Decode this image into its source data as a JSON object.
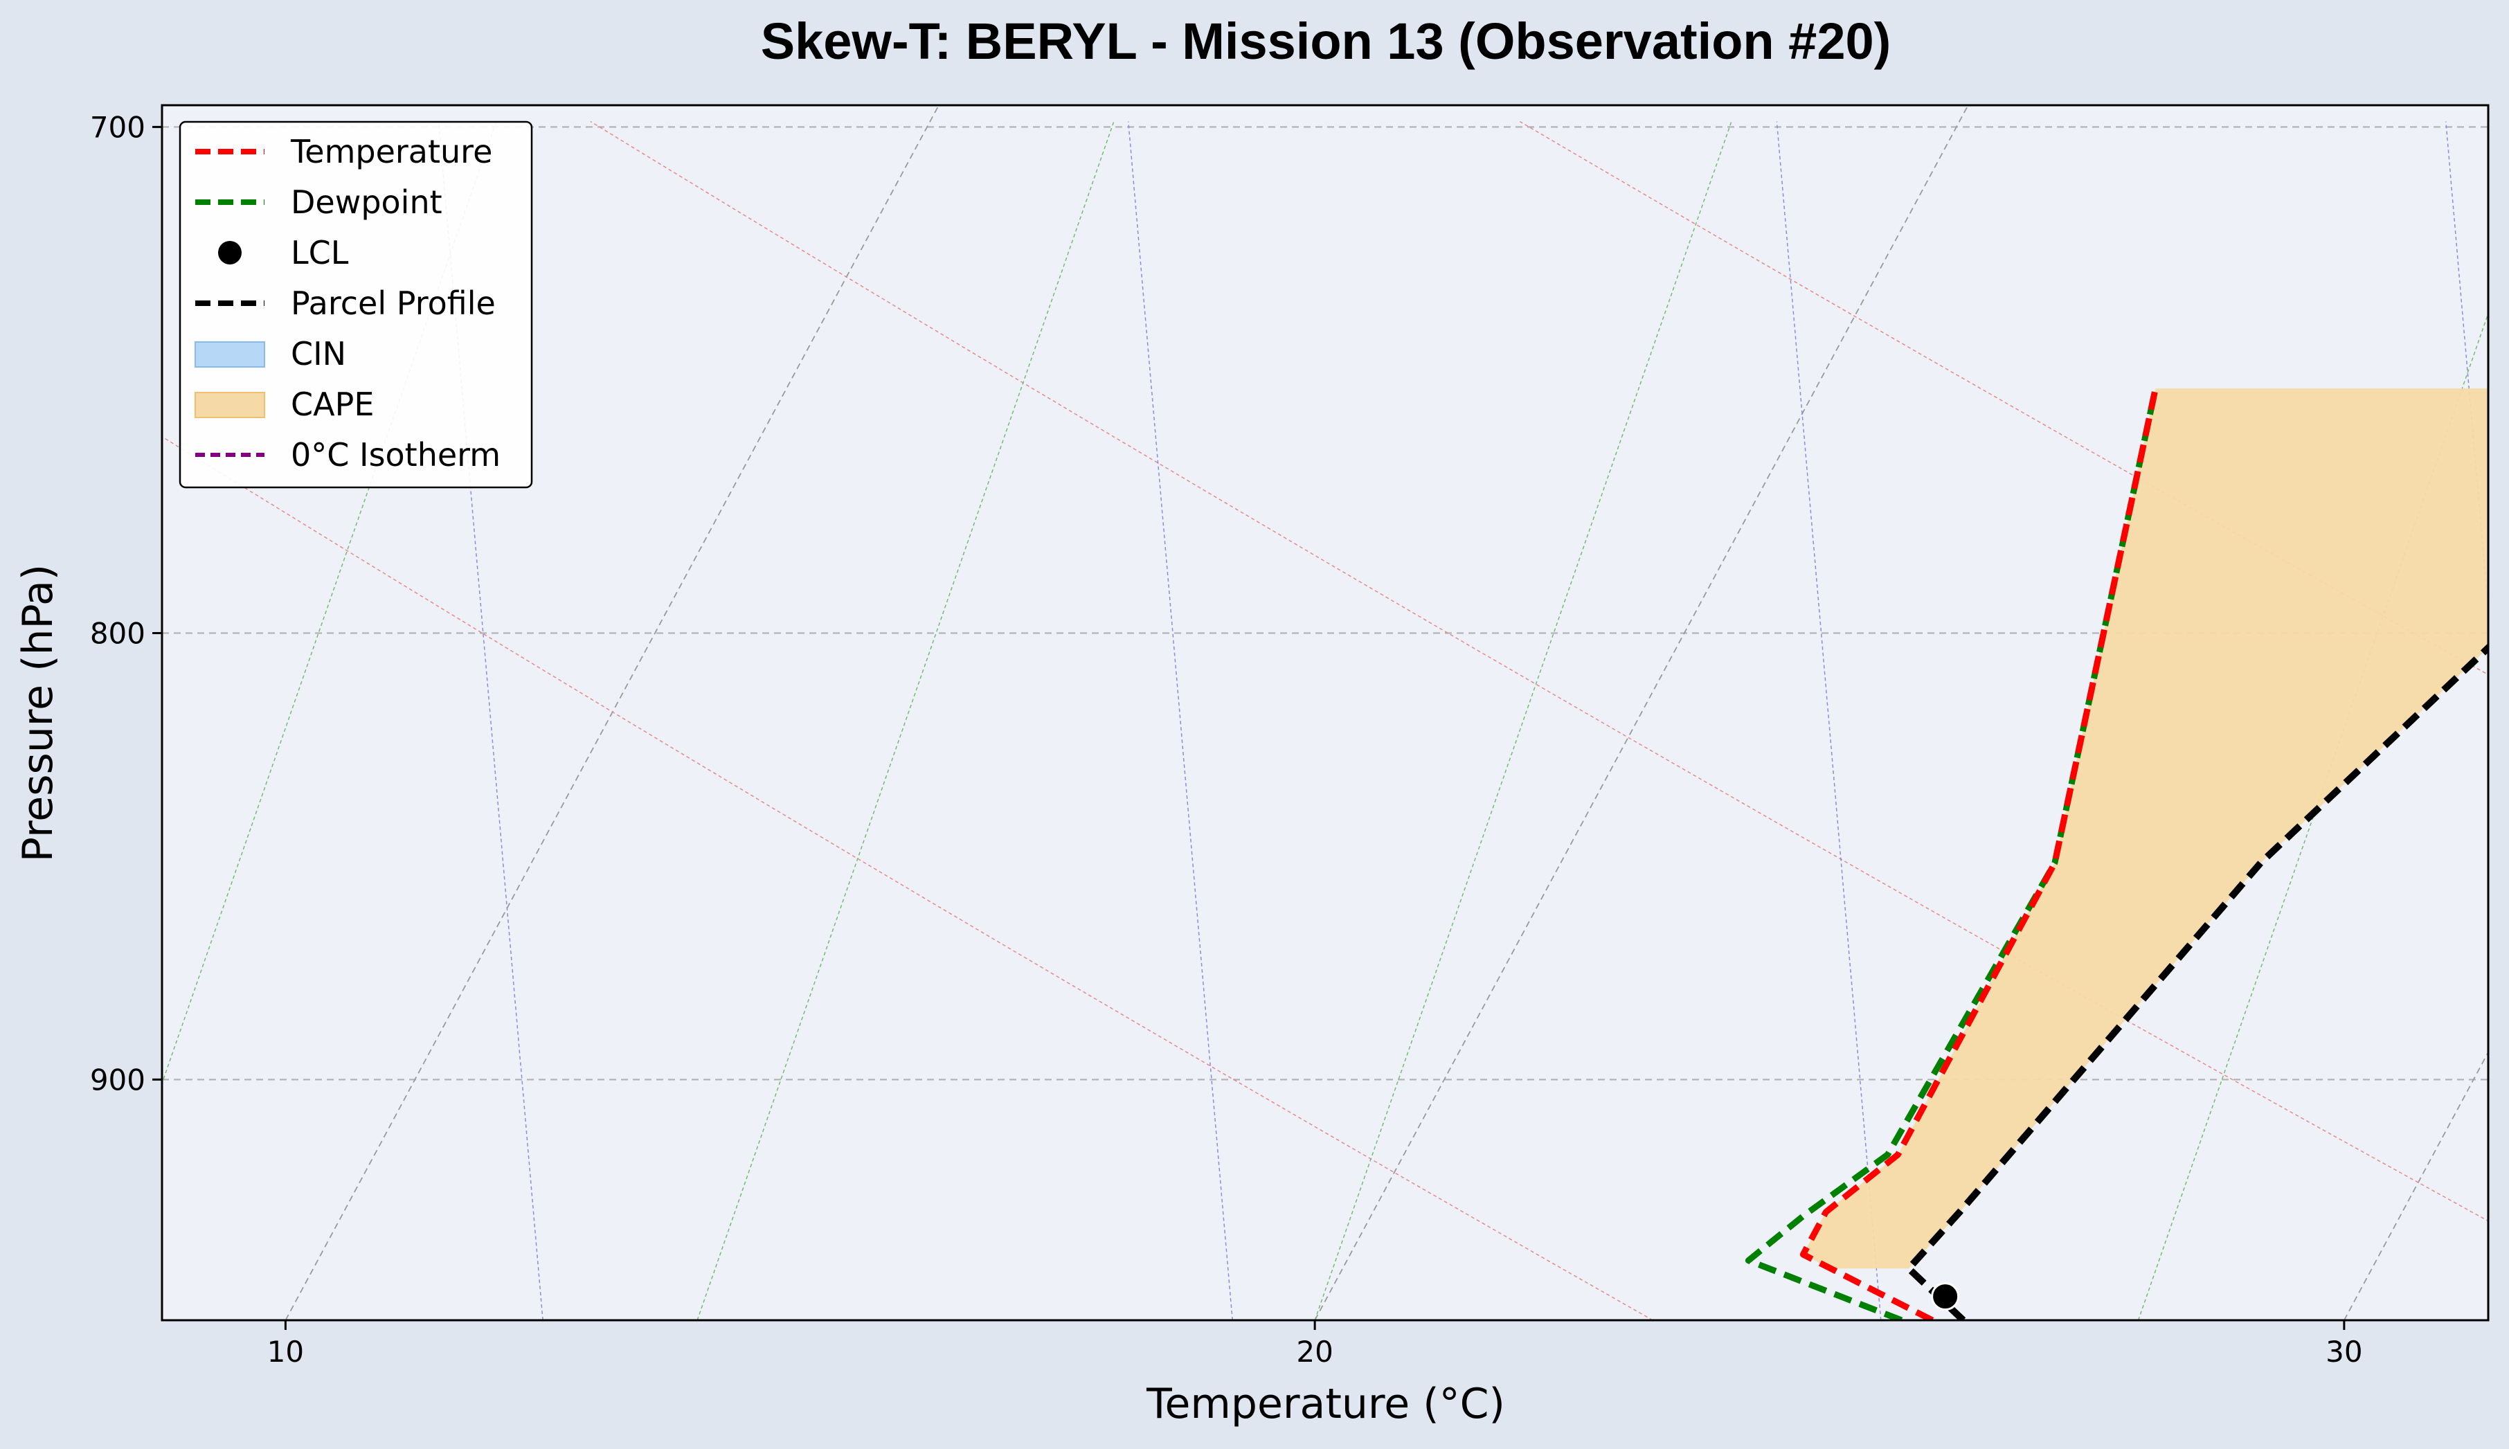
{
  "chart_data": {
    "type": "line",
    "title": "Skew-T: BERYL - Mission 13 (Observation #20)",
    "xlabel": "Temperature (°C)",
    "ylabel": "Pressure (hPa)",
    "xlim": [
      8.8,
      31.4
    ],
    "ylim": [
      959,
      696
    ],
    "y_scale": "log",
    "skew": 19.8,
    "x_ticks": [
      10,
      20,
      30
    ],
    "y_ticks": [
      700,
      800,
      900
    ],
    "grid": true,
    "legend_position": "top-left",
    "colors": {
      "plot_bg": "#eef2f8",
      "figure_bg": "#dfe6f0",
      "temperature": "#ff0000",
      "dewpoint": "#008000",
      "parcel": "#000000",
      "cape": "#f5d9a6",
      "cin": "#b7d7f7",
      "isotherm": "#800080",
      "dry_adiabat": "#e88a8a",
      "moist_adiabat": "#8a8ae8",
      "mixing_ratio": "#6fbf6f",
      "skewed_isotherm": "#9a9a9a"
    },
    "series": [
      {
        "name": "Temperature",
        "pressure": [
          959,
          942.5,
          932,
          918,
          850,
          750
        ],
        "values": [
          26.0,
          24.4,
          24.4,
          24.8,
          24.8,
          23.3
        ]
      },
      {
        "name": "Dewpoint",
        "pressure": [
          959,
          944,
          933,
          918,
          850,
          750
        ],
        "values": [
          25.7,
          23.9,
          24.2,
          24.7,
          24.8,
          23.3
        ]
      },
      {
        "name": "Parcel Profile",
        "pressure": [
          959,
          946,
          932,
          850,
          750
        ],
        "values": [
          26.3,
          25.5,
          25.7,
          26.8,
          29.2
        ]
      }
    ],
    "lcl": {
      "name": "LCL",
      "pressure": 953,
      "value": 26.0
    },
    "cape": {
      "name": "CAPE",
      "pressure_range": [
        946,
        750
      ]
    },
    "cin": {
      "name": "CIN"
    },
    "zero_isotherm": {
      "name": "0°C Isotherm",
      "value": 0
    },
    "legend": [
      "Temperature",
      "Dewpoint",
      "LCL",
      "Parcel Profile",
      "CIN",
      "CAPE",
      "0°C Isotherm"
    ]
  }
}
